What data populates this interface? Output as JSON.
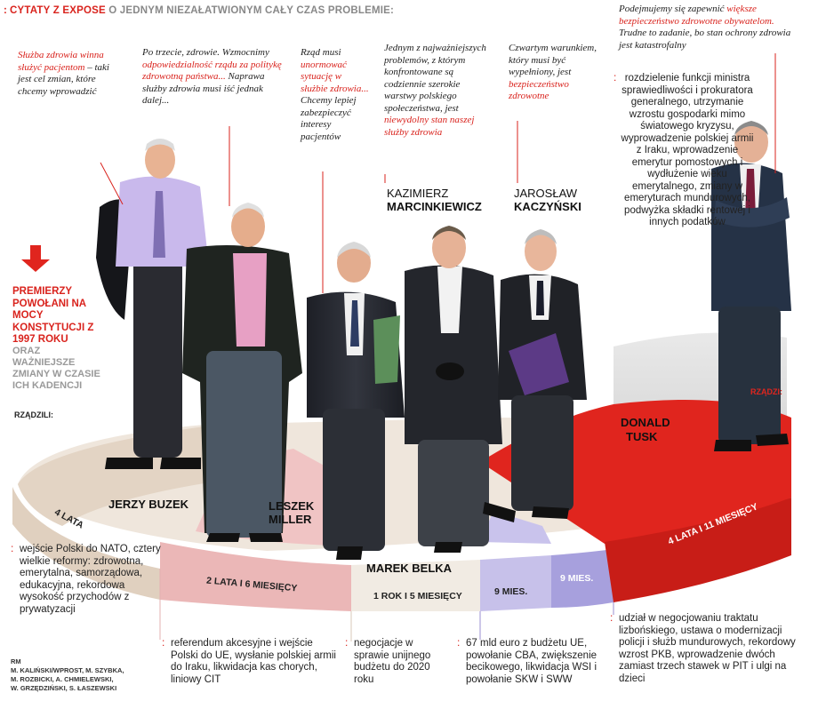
{
  "header": {
    "prefix": "CYTATY Z EXPOSE",
    "suffix": "O JEDNYM NIEZAŁATWIONYM CAŁY CZAS PROBLEMIE:"
  },
  "quotes": {
    "buzek": {
      "red": "Służba zdrowia winna służyć pacjentom",
      "rest": " – taki jest cel zmian, które chcemy wprowadzić"
    },
    "miller": {
      "p1": "Po trzecie, zdrowie. Wzmocnimy ",
      "red": "odpowiedzialność rządu za politykę zdrowotną państwa...",
      "p2": " Naprawa służby zdrowia musi iść jednak dalej..."
    },
    "belka": {
      "p1": "Rząd musi ",
      "red": "unormować sytuację w służbie zdrowia...",
      "p2": " Chcemy lepiej zabezpieczyć interesy pacjentów"
    },
    "marcinkiewicz": {
      "p1": "Jednym z najważniejszych problemów, z którym konfrontowane są codziennie szerokie warstwy polskiego społeczeństwa, jest ",
      "red": "niewydolny stan naszej służby zdrowia"
    },
    "kaczynski": {
      "p1": "Czwartym warunkiem, który musi być wypełniony, jest ",
      "red": "bezpieczeństwo zdrowotne"
    },
    "tusk": {
      "p1": "Podejmujemy się zapewnić ",
      "red": "większe bezpieczeństwo zdrowotne obywatelom.",
      "p2": " Trudne to zadanie, bo stan ochrony zdrowia jest katastrofalny"
    }
  },
  "names": {
    "marcinkiewicz": {
      "first": "KAZIMIERZ",
      "last": "MARCINKIEWICZ"
    },
    "kaczynski": {
      "first": "JAROSŁAW",
      "last": "KACZYŃSKI"
    },
    "buzek": "JERZY BUZEK",
    "miller_first": "LESZEK",
    "miller_last": "MILLER",
    "belka": "MAREK BELKA",
    "tusk_first": "DONALD",
    "tusk_last": "TUSK"
  },
  "sidebar": {
    "title": "PREMIERZY POWOŁANI NA MOCY KONSTYTUCJI Z 1997 ROKU",
    "subtitle": "ORAZ WAŻNIEJSZE ZMIANY W CZASIE ICH KADENCJI",
    "rzadzili": "RZĄDZILI:",
    "rzadzi": "RZĄDZI:"
  },
  "durations": {
    "buzek": "4 LATA",
    "miller": "2 LATA I 6 MIESIĘCY",
    "belka": "1 ROK I 5 MIESIĘCY",
    "marcinkiewicz": "9 MIES.",
    "kaczynski": "9 MIES.",
    "tusk": "4 LATA I 11 MIESIĘCY"
  },
  "reforms": {
    "buzek": "wejście Polski do NATO, cztery wielkie reformy: zdrowotna, emerytalna, samorządowa, edukacyjna, rekordowa wysokość przychodów z prywatyzacji",
    "miller": "referendum akcesyjne i wejście Polski do UE, wysłanie polskiej armii do Iraku, likwidacja kas chorych, liniowy CIT",
    "belka": "negocjacje w sprawie unijnego budżetu do 2020 roku",
    "marcinkiewicz_kaczynski": "67 mld euro z budżetu UE, powołanie CBA, zwiększenie becikowego, likwidacja WSI i powołanie SKW i SWW",
    "tusk_bottom": "udział w negocjowaniu traktatu lizbońskiego, ustawa o modernizacji policji i służb mundurowych, rekordowy wzrost PKB, wprowadzenie dwóch zamiast trzech stawek w PIT i ulgi na dzieci",
    "tusk_side": "rozdzielenie funkcji ministra sprawiedliwości i prokuratora generalnego, utrzymanie wzrostu gospodarki mimo światowego kryzysu, wyprowadzenie polskiej armii z Iraku, wprowadzenie emerytur pomostowych i wydłużenie wieku emerytalnego, zmiany w emeryturach mundurowych, podwyżka składki rentowej i innych podatków"
  },
  "credits": [
    "RM",
    "M. KALIŃSKI/WPROST, M. SZYBKA,",
    "M. ROZBICKI, A. CHMIELEWSKI,",
    "W. GRZĘDZIŃSKI, S. ŁASZEWSKI"
  ],
  "colors": {
    "accent": "#d9231d",
    "buzek": "#e9ddd0",
    "miller": "#efc2c2",
    "belka": "#f0ebe3",
    "mk": "#c8c2ea",
    "kacz": "#a9a2de",
    "tusk": "#e0251e"
  }
}
